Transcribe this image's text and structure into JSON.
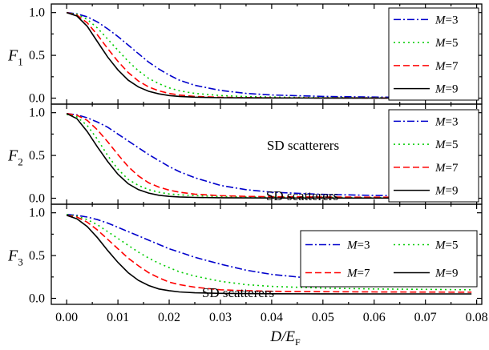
{
  "figure": {
    "xlabel_main": "D/E",
    "xlabel_sub": "F",
    "x_ticks": [
      "0.00",
      "0.01",
      "0.02",
      "0.03",
      "0.04",
      "0.05",
      "0.06",
      "0.07",
      "0.08"
    ],
    "xlim": [
      -0.003,
      0.081
    ]
  },
  "chart_data": [
    {
      "type": "line",
      "ylabel_main": "F",
      "ylabel_sub": "1",
      "annotation": "SD scatterers",
      "ylim": [
        -0.07,
        1.1
      ],
      "y_ticks": [
        "0.0",
        "0.5",
        "1.0"
      ],
      "legend_position": "top-right",
      "x": [
        0,
        0.002,
        0.004,
        0.006,
        0.008,
        0.01,
        0.012,
        0.014,
        0.016,
        0.018,
        0.02,
        0.022,
        0.025,
        0.03,
        0.035,
        0.04,
        0.05,
        0.06,
        0.07,
        0.079
      ],
      "series": [
        {
          "name": "M=3",
          "color": "#0000cc",
          "dash": "dashdot",
          "values": [
            1.0,
            0.985,
            0.95,
            0.89,
            0.81,
            0.72,
            0.62,
            0.52,
            0.42,
            0.34,
            0.27,
            0.21,
            0.15,
            0.09,
            0.055,
            0.037,
            0.02,
            0.012,
            0.008,
            0.006
          ]
        },
        {
          "name": "M=5",
          "color": "#00cc00",
          "dash": "dotted",
          "values": [
            1.0,
            0.98,
            0.92,
            0.82,
            0.69,
            0.56,
            0.43,
            0.32,
            0.23,
            0.17,
            0.12,
            0.085,
            0.055,
            0.03,
            0.018,
            0.012,
            0.006,
            0.004,
            0.003,
            0.002
          ]
        },
        {
          "name": "M=7",
          "color": "#ff0000",
          "dash": "dashed",
          "values": [
            1.0,
            0.97,
            0.88,
            0.74,
            0.58,
            0.43,
            0.3,
            0.2,
            0.13,
            0.085,
            0.055,
            0.036,
            0.02,
            0.01,
            0.006,
            0.004,
            0.002,
            0.001,
            0.001,
            0.001
          ]
        },
        {
          "name": "M=9",
          "color": "#000000",
          "dash": "solid",
          "values": [
            1.0,
            0.96,
            0.84,
            0.66,
            0.48,
            0.33,
            0.21,
            0.13,
            0.08,
            0.05,
            0.03,
            0.02,
            0.011,
            0.005,
            0.003,
            0.002,
            0.001,
            0.0,
            0.0,
            0.0
          ]
        }
      ]
    },
    {
      "type": "line",
      "ylabel_main": "F",
      "ylabel_sub": "2",
      "annotation": "SD scatterers",
      "ylim": [
        -0.07,
        1.1
      ],
      "y_ticks": [
        "0.0",
        "0.5",
        "1.0"
      ],
      "legend_position": "top-right",
      "x": [
        0,
        0.002,
        0.004,
        0.006,
        0.008,
        0.01,
        0.012,
        0.014,
        0.016,
        0.018,
        0.02,
        0.022,
        0.025,
        0.03,
        0.035,
        0.04,
        0.05,
        0.06,
        0.07,
        0.079
      ],
      "series": [
        {
          "name": "M=3",
          "color": "#0000cc",
          "dash": "dashdot",
          "values": [
            0.99,
            0.975,
            0.94,
            0.89,
            0.83,
            0.75,
            0.67,
            0.59,
            0.51,
            0.44,
            0.37,
            0.31,
            0.24,
            0.15,
            0.1,
            0.07,
            0.045,
            0.033,
            0.027,
            0.023
          ]
        },
        {
          "name": "M=5",
          "color": "#00cc00",
          "dash": "dotted",
          "values": [
            0.98,
            0.95,
            0.85,
            0.69,
            0.5,
            0.34,
            0.22,
            0.15,
            0.1,
            0.07,
            0.05,
            0.04,
            0.03,
            0.02,
            0.015,
            0.012,
            0.01,
            0.008,
            0.007,
            0.006
          ]
        },
        {
          "name": "M=7",
          "color": "#ff0000",
          "dash": "dashed",
          "values": [
            0.99,
            0.97,
            0.91,
            0.8,
            0.66,
            0.51,
            0.37,
            0.26,
            0.18,
            0.13,
            0.095,
            0.07,
            0.048,
            0.03,
            0.022,
            0.018,
            0.014,
            0.012,
            0.011,
            0.01
          ]
        },
        {
          "name": "M=9",
          "color": "#000000",
          "dash": "solid",
          "values": [
            0.99,
            0.93,
            0.78,
            0.6,
            0.43,
            0.28,
            0.17,
            0.1,
            0.06,
            0.035,
            0.022,
            0.015,
            0.01,
            0.006,
            0.004,
            0.003,
            0.002,
            0.002,
            0.002,
            0.002
          ]
        }
      ]
    },
    {
      "type": "line",
      "ylabel_main": "F",
      "ylabel_sub": "3",
      "annotation": "SD scatterers",
      "ylim": [
        -0.07,
        1.1
      ],
      "y_ticks": [
        "0.0",
        "0.5",
        "1.0"
      ],
      "legend_position": "right",
      "x": [
        0,
        0.002,
        0.004,
        0.006,
        0.008,
        0.01,
        0.012,
        0.014,
        0.016,
        0.018,
        0.02,
        0.022,
        0.025,
        0.03,
        0.035,
        0.04,
        0.05,
        0.06,
        0.07,
        0.079
      ],
      "series": [
        {
          "name": "M=3",
          "color": "#0000cc",
          "dash": "dashdot",
          "values": [
            0.98,
            0.97,
            0.95,
            0.92,
            0.88,
            0.83,
            0.78,
            0.73,
            0.68,
            0.63,
            0.58,
            0.54,
            0.48,
            0.4,
            0.33,
            0.28,
            0.22,
            0.19,
            0.175,
            0.165
          ]
        },
        {
          "name": "M=5",
          "color": "#00cc00",
          "dash": "dotted",
          "values": [
            0.98,
            0.96,
            0.92,
            0.86,
            0.78,
            0.7,
            0.62,
            0.54,
            0.47,
            0.41,
            0.36,
            0.31,
            0.26,
            0.2,
            0.16,
            0.14,
            0.12,
            0.11,
            0.105,
            0.1
          ]
        },
        {
          "name": "M=7",
          "color": "#ff0000",
          "dash": "dashed",
          "values": [
            0.97,
            0.95,
            0.89,
            0.8,
            0.69,
            0.58,
            0.47,
            0.38,
            0.3,
            0.24,
            0.19,
            0.16,
            0.13,
            0.1,
            0.09,
            0.083,
            0.078,
            0.075,
            0.073,
            0.072
          ]
        },
        {
          "name": "M=9",
          "color": "#000000",
          "dash": "solid",
          "values": [
            0.97,
            0.93,
            0.84,
            0.71,
            0.56,
            0.42,
            0.3,
            0.21,
            0.15,
            0.11,
            0.09,
            0.075,
            0.065,
            0.058,
            0.055,
            0.054,
            0.053,
            0.052,
            0.052,
            0.052
          ]
        }
      ]
    }
  ]
}
